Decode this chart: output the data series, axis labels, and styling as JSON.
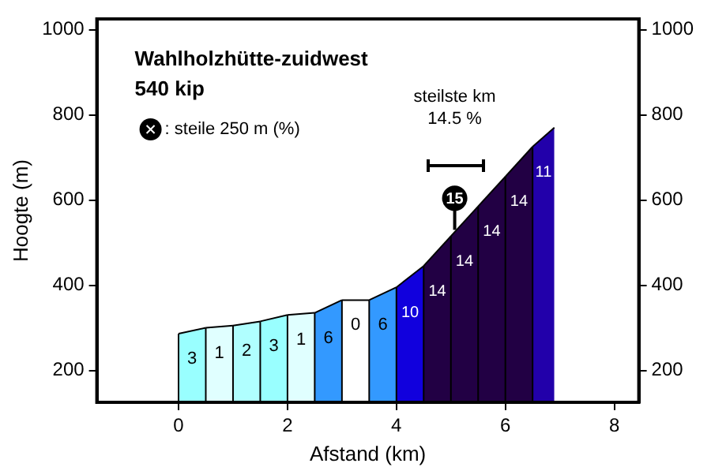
{
  "chart_data": {
    "type": "area",
    "title": "Wahlholzhütte-zuidwest",
    "subtitle": "540 kip",
    "xlabel": "Afstand (km)",
    "ylabel": "Hoogte (m)",
    "xlim": [
      -1.5,
      8.45
    ],
    "xticks": [
      0,
      2,
      4,
      6,
      8
    ],
    "ylim": [
      125,
      1025
    ],
    "yticks": [
      200,
      400,
      600,
      800,
      1000
    ],
    "y2lim": [
      125,
      1025
    ],
    "y2ticks": [
      200,
      400,
      600,
      800,
      1000
    ],
    "legend": "top left",
    "series": [
      {
        "color": "#99ffff",
        "x": [
          0,
          0.5
        ],
        "values": [
          286,
          300
        ]
      },
      {
        "color": "#e0ffff",
        "x": [
          0.5,
          1
        ],
        "values": [
          300,
          305
        ]
      },
      {
        "color": "#b0ffff",
        "x": [
          1,
          1.5
        ],
        "values": [
          305,
          315
        ]
      },
      {
        "color": "#99ffff",
        "x": [
          1.5,
          2
        ],
        "values": [
          315,
          330
        ]
      },
      {
        "color": "#e0ffff",
        "x": [
          2,
          2.5
        ],
        "values": [
          330,
          335
        ]
      },
      {
        "color": "#3399ff",
        "x": [
          2.5,
          3
        ],
        "values": [
          335,
          365
        ]
      },
      {
        "color": "#ffffff",
        "x": [
          3,
          3.5
        ],
        "values": [
          365,
          365
        ]
      },
      {
        "color": "#3399ff",
        "x": [
          3.5,
          4
        ],
        "values": [
          365,
          395
        ]
      },
      {
        "color": "#1100dd",
        "x": [
          4,
          4.5
        ],
        "values": [
          395,
          445
        ]
      },
      {
        "color": "#220044",
        "x": [
          4.5,
          5
        ],
        "values": [
          445,
          515
        ]
      },
      {
        "color": "#220044",
        "x": [
          5,
          5.5
        ],
        "values": [
          515,
          585
        ]
      },
      {
        "color": "#220044",
        "x": [
          5.5,
          6
        ],
        "values": [
          585,
          655
        ]
      },
      {
        "color": "#220044",
        "x": [
          6,
          6.5
        ],
        "values": [
          655,
          725
        ]
      },
      {
        "color": "#2200aa",
        "x": [
          6.5,
          6.9
        ],
        "values": [
          725,
          770
        ]
      },
      {
        "type": "scatter",
        "name": ": steile 250 m (%)",
        "color": "#000000",
        "x": [
          5.07
        ],
        "values": [
          604
        ]
      }
    ],
    "annotations": [
      {
        "text": "3",
        "x": 0,
        "y": 286
      },
      {
        "text": "1",
        "x": 0.5,
        "y": 300
      },
      {
        "text": "2",
        "x": 1,
        "y": 305
      },
      {
        "text": "3",
        "x": 1.5,
        "y": 315
      },
      {
        "text": "1",
        "x": 2,
        "y": 330
      },
      {
        "text": "6",
        "x": 2.5,
        "y": 335
      },
      {
        "text": "0",
        "x": 3,
        "y": 365
      },
      {
        "text": "6",
        "x": 3.5,
        "y": 365
      },
      {
        "text": "10",
        "x": 4,
        "y": 395
      },
      {
        "text": "14",
        "x": 4.5,
        "y": 445
      },
      {
        "text": "14",
        "x": 5,
        "y": 515
      },
      {
        "text": "14",
        "x": 5.5,
        "y": 585
      },
      {
        "text": "14",
        "x": 6,
        "y": 655
      },
      {
        "text": "11",
        "x": 6.5,
        "y": 725
      },
      {
        "text": "15",
        "x": 5.07,
        "y": 604
      },
      "steilste km",
      "14.5 %"
    ]
  }
}
